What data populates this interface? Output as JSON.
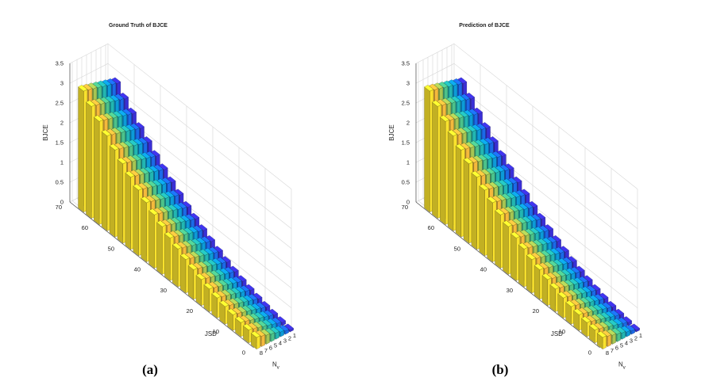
{
  "chart_data": [
    {
      "type": "bar3d",
      "panel": "a",
      "caption": "(a)",
      "title": "Ground Truth of BJCE",
      "xlabel": "N_v",
      "ylabel": "JSD",
      "zlabel": "BJCE",
      "x_ticks": [
        "1",
        "2",
        "3",
        "4",
        "5",
        "6",
        "7",
        "8"
      ],
      "y_ticks": [
        "0",
        "10",
        "20",
        "30",
        "40",
        "50",
        "60",
        "70"
      ],
      "z_ticks": [
        "0",
        "0.5",
        "1",
        "1.5",
        "2",
        "2.5",
        "3",
        "3.5"
      ],
      "zlim": [
        0,
        3.5
      ],
      "ylim": [
        0,
        70
      ],
      "grid": true,
      "nv": [
        1,
        2,
        3,
        4,
        5,
        6,
        7,
        8
      ],
      "jsd": [
        0,
        3,
        6,
        9,
        12,
        15,
        18,
        21,
        24,
        27,
        30,
        33,
        36,
        39,
        42,
        45,
        48,
        51,
        54,
        57,
        60,
        63,
        66
      ],
      "row_heights_base": [
        0.05,
        0.08,
        0.11,
        0.15,
        0.2,
        0.26,
        0.33,
        0.41,
        0.5,
        0.6,
        0.71,
        0.83,
        0.96,
        1.1,
        1.25,
        1.41,
        1.58,
        1.76,
        1.95,
        2.15,
        2.36,
        2.58,
        2.81
      ],
      "nv_increment": 0.035
    },
    {
      "type": "bar3d",
      "panel": "b",
      "caption": "(b)",
      "title": "Prediction of BJCE",
      "xlabel": "N_v",
      "ylabel": "JSD",
      "zlabel": "BJCE",
      "x_ticks": [
        "1",
        "2",
        "3",
        "4",
        "5",
        "6",
        "7",
        "8"
      ],
      "y_ticks": [
        "0",
        "10",
        "20",
        "30",
        "40",
        "50",
        "60",
        "70"
      ],
      "z_ticks": [
        "0",
        "0.5",
        "1",
        "1.5",
        "2",
        "2.5",
        "3",
        "3.5"
      ],
      "zlim": [
        0,
        3.5
      ],
      "ylim": [
        0,
        70
      ],
      "grid": true,
      "nv": [
        1,
        2,
        3,
        4,
        5,
        6,
        7,
        8
      ],
      "jsd": [
        0,
        3,
        6,
        9,
        12,
        15,
        18,
        21,
        24,
        27,
        30,
        33,
        36,
        39,
        42,
        45,
        48,
        51,
        54,
        57,
        60,
        63,
        66
      ],
      "row_heights_base": [
        0.05,
        0.08,
        0.11,
        0.15,
        0.2,
        0.26,
        0.33,
        0.41,
        0.5,
        0.6,
        0.71,
        0.83,
        0.96,
        1.1,
        1.25,
        1.41,
        1.58,
        1.76,
        1.95,
        2.15,
        2.36,
        2.58,
        2.81
      ],
      "nv_increment": 0.035
    }
  ],
  "colors": {
    "nv_colormap": [
      "#3a2fd6",
      "#1b6ae8",
      "#0c9bd8",
      "#22b6b2",
      "#4cc28a",
      "#a7c552",
      "#f5b93c",
      "#f9e22d"
    ]
  }
}
